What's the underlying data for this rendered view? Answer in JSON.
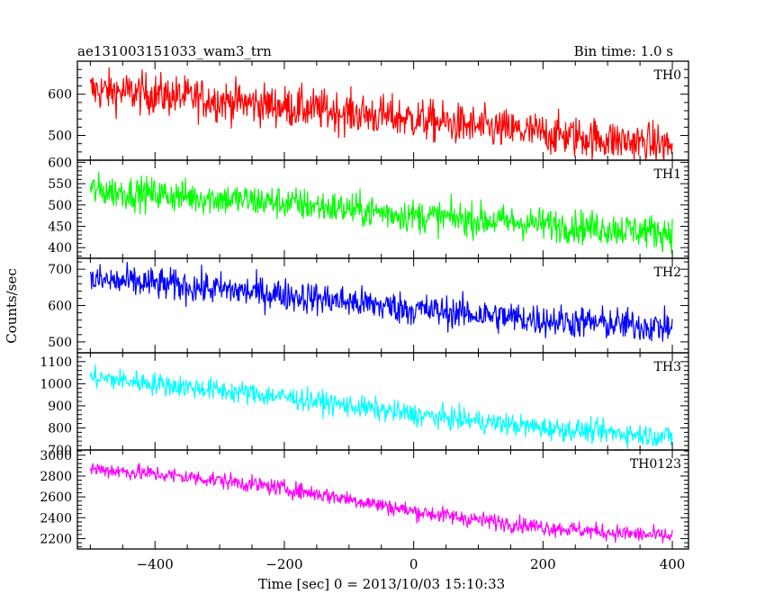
{
  "header": {
    "title": "ae131003151033_wam3_trn",
    "bin_time": "Bin time: 1.0 s"
  },
  "axes": {
    "xlabel": "Time [sec] 0 = 2013/10/03 15:10:33",
    "ylabel": "Counts/sec",
    "xlim": [
      -520,
      425
    ],
    "xticks": [
      -400,
      -200,
      0,
      200,
      400
    ],
    "xtick_labels": [
      "−400",
      "−200",
      "0",
      "200",
      "400"
    ]
  },
  "chart_data": {
    "type": "line",
    "title": "ae131003151033_wam3_trn",
    "xlabel": "Time [sec] 0 = 2013/10/03 15:10:33",
    "ylabel": "Counts/sec",
    "bin_time_s": 1.0,
    "x_range": [
      -500,
      400
    ],
    "panels": [
      {
        "name": "TH0",
        "color": "#ff0000",
        "ylim": [
          440,
          680
        ],
        "yticks": [
          500,
          600
        ],
        "series": [
          {
            "name": "TH0",
            "x": [
              -500,
              -400,
              -300,
              -200,
              -100,
              0,
              100,
              200,
              300,
              400
            ],
            "values": [
              610,
              600,
              585,
              570,
              555,
              540,
              520,
              505,
              490,
              475
            ]
          }
        ],
        "noise_amplitude": 45
      },
      {
        "name": "TH1",
        "color": "#00ff00",
        "ylim": [
          375,
          605
        ],
        "yticks": [
          400,
          450,
          500,
          550,
          600
        ],
        "series": [
          {
            "name": "TH1",
            "x": [
              -500,
              -400,
              -300,
              -200,
              -100,
              0,
              100,
              200,
              300,
              400
            ],
            "values": [
              535,
              525,
              515,
              505,
              490,
              475,
              465,
              455,
              445,
              435
            ]
          }
        ],
        "noise_amplitude": 35
      },
      {
        "name": "TH2",
        "color": "#0000ff",
        "ylim": [
          470,
          730
        ],
        "yticks": [
          500,
          600,
          700
        ],
        "series": [
          {
            "name": "TH2",
            "x": [
              -500,
              -400,
              -300,
              -200,
              -100,
              0,
              100,
              200,
              300,
              400
            ],
            "values": [
              670,
              660,
              645,
              630,
              610,
              590,
              575,
              560,
              550,
              540
            ]
          }
        ],
        "noise_amplitude": 40
      },
      {
        "name": "TH3",
        "color": "#00ffff",
        "ylim": [
          700,
          1140
        ],
        "yticks": [
          700,
          800,
          900,
          1000,
          1100
        ],
        "series": [
          {
            "name": "TH3",
            "x": [
              -500,
              -400,
              -300,
              -200,
              -100,
              0,
              100,
              200,
              300,
              400
            ],
            "values": [
              1030,
              1000,
              970,
              940,
              900,
              860,
              830,
              800,
              780,
              760
            ]
          }
        ],
        "noise_amplitude": 45
      },
      {
        "name": "TH0123",
        "color": "#ff00ff",
        "ylim": [
          2100,
          3050
        ],
        "yticks": [
          2200,
          2400,
          2600,
          2800,
          3000
        ],
        "series": [
          {
            "name": "TH0123",
            "x": [
              -500,
              -400,
              -300,
              -200,
              -100,
              0,
              100,
              200,
              300,
              400
            ],
            "values": [
              2870,
              2820,
              2760,
              2680,
              2580,
              2460,
              2380,
              2310,
              2260,
              2220
            ]
          }
        ],
        "noise_amplitude": 70
      }
    ]
  }
}
